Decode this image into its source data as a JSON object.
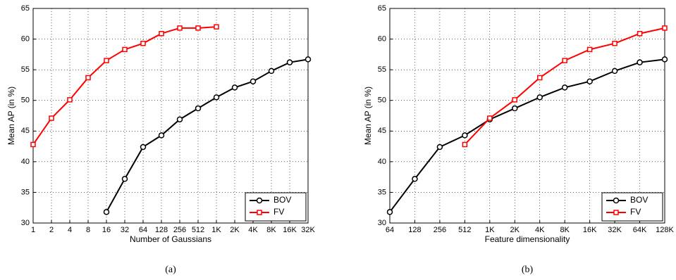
{
  "chart_data": [
    {
      "type": "line",
      "xlabel": "Number of Gaussians",
      "ylabel": "Mean AP (in %)",
      "caption": "(a)",
      "categories": [
        "1",
        "2",
        "4",
        "8",
        "16",
        "32",
        "64",
        "128",
        "256",
        "512",
        "1K",
        "2K",
        "4K",
        "8K",
        "16K",
        "32K"
      ],
      "series": [
        {
          "name": "BOV",
          "color": "#000000",
          "marker": "circle",
          "values": [
            null,
            null,
            null,
            null,
            31.8,
            37.2,
            42.4,
            44.3,
            46.9,
            48.7,
            50.5,
            52.1,
            53.1,
            54.8,
            56.2,
            56.7
          ]
        },
        {
          "name": "FV",
          "color": "#ff0000",
          "marker": "square",
          "values": [
            42.8,
            47.1,
            50.1,
            53.7,
            56.5,
            58.3,
            59.3,
            60.9,
            61.8,
            61.8,
            62.0,
            null,
            null,
            null,
            null,
            null
          ]
        }
      ],
      "ylim": [
        30,
        65
      ],
      "yticks": [
        30,
        35,
        40,
        45,
        50,
        55,
        60,
        65
      ],
      "grid": true,
      "legend": "lower right"
    },
    {
      "type": "line",
      "xlabel": "Feature dimensionality",
      "ylabel": "Mean AP (in %)",
      "caption": "(b)",
      "categories": [
        "64",
        "128",
        "256",
        "512",
        "1K",
        "2K",
        "4K",
        "8K",
        "16K",
        "32K",
        "64K",
        "128K"
      ],
      "series": [
        {
          "name": "BOV",
          "color": "#000000",
          "marker": "circle",
          "values": [
            31.8,
            37.2,
            42.4,
            44.3,
            46.9,
            48.7,
            50.5,
            52.1,
            53.1,
            54.8,
            56.2,
            56.7
          ]
        },
        {
          "name": "FV",
          "color": "#ff0000",
          "marker": "square",
          "values": [
            null,
            null,
            null,
            42.8,
            47.1,
            50.1,
            53.7,
            56.5,
            58.3,
            59.3,
            60.9,
            61.8
          ]
        }
      ],
      "ylim": [
        30,
        65
      ],
      "yticks": [
        30,
        35,
        40,
        45,
        50,
        55,
        60,
        65
      ],
      "grid": true,
      "legend": "lower right"
    }
  ]
}
